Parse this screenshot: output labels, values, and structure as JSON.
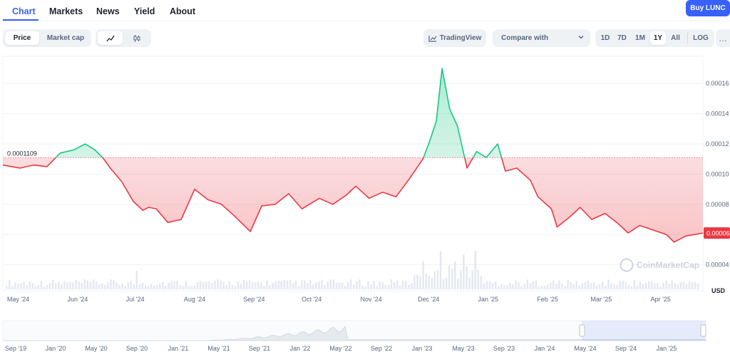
{
  "nav": {
    "tabs": [
      "Chart",
      "Markets",
      "News",
      "Yield",
      "About"
    ],
    "active": "Chart",
    "buy_button": "Buy LUNC"
  },
  "toolbar": {
    "metric_options": [
      "Price",
      "Market cap"
    ],
    "metric_selected": "Price",
    "view_icons": [
      "line-chart-icon",
      "candlestick-icon"
    ],
    "view_selected": "line",
    "tradingview_label": "TradingView",
    "compare_label": "Compare with",
    "ranges": [
      "1D",
      "7D",
      "1M",
      "1Y",
      "All"
    ],
    "range_selected": "1Y",
    "log_label": "LOG",
    "more_label": "…"
  },
  "colors": {
    "up": "#16c784",
    "down": "#ea3943",
    "accent": "#3861fb",
    "grid": "#eff2f5",
    "axis_text": "#58667e"
  },
  "chart_data": {
    "type": "line",
    "y_ticks": [
      "0.00004",
      "0.00006",
      "0.00008",
      "0.00010",
      "0.00012",
      "0.00014",
      "0.00016"
    ],
    "ylim": [
      2.8e-05,
      0.000178
    ],
    "reference_value": 0.0001109,
    "reference_label": "0.0001109",
    "current_price_label": "0.00006",
    "y_unit": "USD",
    "x_labels": [
      "May '24",
      "Jun '24",
      "Jul '24",
      "Aug '24",
      "Sep '24",
      "Oct '24",
      "Nov '24",
      "Dec '24",
      "Jan '25",
      "Feb '25",
      "Mar '25",
      "Apr '25"
    ],
    "x_range": [
      "2024-04-23",
      "2025-04-23"
    ],
    "series": [
      {
        "values": [
          [
            "2024-04-23",
            0.000106
          ],
          [
            "2024-05-02",
            0.000104
          ],
          [
            "2024-05-09",
            0.000106
          ],
          [
            "2024-05-16",
            0.000105
          ],
          [
            "2024-05-23",
            0.000114
          ],
          [
            "2024-05-30",
            0.000116
          ],
          [
            "2024-06-05",
            0.00012
          ],
          [
            "2024-06-10",
            0.000116
          ],
          [
            "2024-06-14",
            0.000111
          ],
          [
            "2024-06-18",
            0.000104
          ],
          [
            "2024-06-24",
            9.5e-05
          ],
          [
            "2024-06-30",
            8.2e-05
          ],
          [
            "2024-07-05",
            7.6e-05
          ],
          [
            "2024-07-08",
            7.8e-05
          ],
          [
            "2024-07-12",
            7.7e-05
          ],
          [
            "2024-07-18",
            6.8e-05
          ],
          [
            "2024-07-25",
            7e-05
          ],
          [
            "2024-08-01",
            9e-05
          ],
          [
            "2024-08-08",
            8.3e-05
          ],
          [
            "2024-08-15",
            8e-05
          ],
          [
            "2024-08-22",
            7.2e-05
          ],
          [
            "2024-08-30",
            6.2e-05
          ],
          [
            "2024-09-05",
            7.9e-05
          ],
          [
            "2024-09-12",
            8e-05
          ],
          [
            "2024-09-19",
            8.7e-05
          ],
          [
            "2024-09-26",
            7.7e-05
          ],
          [
            "2024-10-05",
            8.4e-05
          ],
          [
            "2024-10-12",
            8e-05
          ],
          [
            "2024-10-19",
            8.6e-05
          ],
          [
            "2024-10-24",
            9.2e-05
          ],
          [
            "2024-10-31",
            8.4e-05
          ],
          [
            "2024-11-07",
            8.8e-05
          ],
          [
            "2024-11-14",
            8.5e-05
          ],
          [
            "2024-11-21",
            9.7e-05
          ],
          [
            "2024-11-28",
            0.00011
          ],
          [
            "2024-12-01",
            0.00012
          ],
          [
            "2024-12-05",
            0.000135
          ],
          [
            "2024-12-08",
            0.00017
          ],
          [
            "2024-12-12",
            0.000143
          ],
          [
            "2024-12-16",
            0.000132
          ],
          [
            "2024-12-21",
            0.000104
          ],
          [
            "2024-12-26",
            0.000115
          ],
          [
            "2024-12-31",
            0.000111
          ],
          [
            "2025-01-06",
            0.00012
          ],
          [
            "2025-01-10",
            0.000102
          ],
          [
            "2025-01-16",
            0.000104
          ],
          [
            "2025-01-23",
            9.6e-05
          ],
          [
            "2025-01-27",
            8.5e-05
          ],
          [
            "2025-02-03",
            7.7e-05
          ],
          [
            "2025-02-06",
            6.5e-05
          ],
          [
            "2025-02-12",
            7.1e-05
          ],
          [
            "2025-02-18",
            7.8e-05
          ],
          [
            "2025-02-24",
            7e-05
          ],
          [
            "2025-03-03",
            7.4e-05
          ],
          [
            "2025-03-10",
            6.7e-05
          ],
          [
            "2025-03-15",
            6.1e-05
          ],
          [
            "2025-03-21",
            6.6e-05
          ],
          [
            "2025-03-28",
            6.3e-05
          ],
          [
            "2025-04-04",
            6e-05
          ],
          [
            "2025-04-08",
            5.5e-05
          ],
          [
            "2025-04-14",
            5.9e-05
          ],
          [
            "2025-04-23",
            6.1e-05
          ]
        ]
      }
    ],
    "watermark": "CoinMarketCap",
    "navigator": {
      "x_labels": [
        "Sep '19",
        "Jan '20",
        "May '20",
        "Sep '20",
        "Jan '21",
        "May '21",
        "Sep '21",
        "Jan '22",
        "May '22",
        "Sep '22",
        "Jan '23",
        "May '23",
        "Sep '23",
        "Jan '24",
        "May '24",
        "Sep '24",
        "Jan '25"
      ],
      "selection": [
        "2024-04-23",
        "2025-04-23"
      ]
    }
  }
}
